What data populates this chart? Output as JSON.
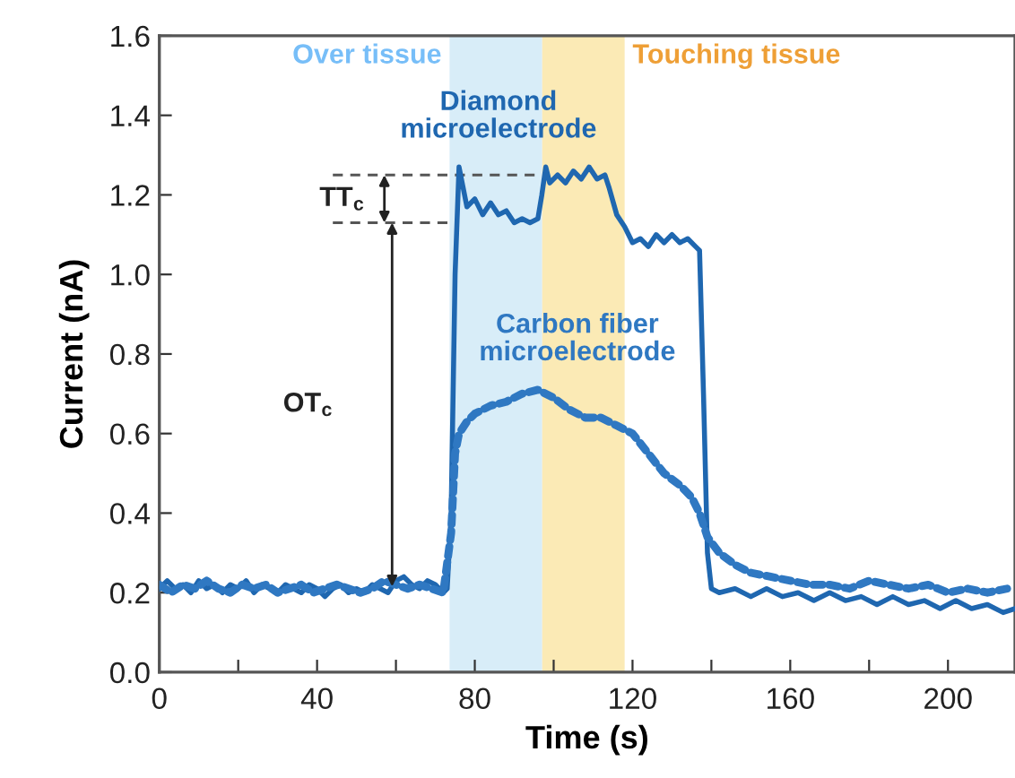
{
  "chart_data": {
    "type": "line",
    "xlabel": "Time (s)",
    "ylabel": "Current (nA)",
    "xlim": [
      0,
      217
    ],
    "ylim": [
      0,
      1.6
    ],
    "xticks": [
      0,
      {
        "value": 20,
        "label": null
      },
      40,
      {
        "value": 60,
        "label": null
      },
      80,
      {
        "value": 100,
        "label": null
      },
      120,
      {
        "value": 140,
        "label": null
      },
      160,
      {
        "value": 180,
        "label": null
      },
      200
    ],
    "yticks": [
      {
        "value": 0,
        "label": "0.0"
      },
      0.2,
      0.4,
      0.6,
      0.8,
      {
        "value": 1.0,
        "label": "1.0"
      },
      1.2,
      1.4,
      1.6
    ],
    "grid": false,
    "legend": false,
    "marker": "none",
    "bands": [
      {
        "axis": "x",
        "from": 73.6,
        "to": 97.1,
        "label": "Over tissue",
        "color": "#d8edf8"
      },
      {
        "axis": "x",
        "from": 97.1,
        "to": 118,
        "label": "Touching tissue",
        "color": "#fbeab5"
      }
    ],
    "ref_lines": [
      {
        "axis": "y",
        "value": 1.25,
        "label": null,
        "color": "#555555",
        "line_style": "dashed"
      },
      {
        "axis": "y",
        "value": 1.13,
        "label": null,
        "color": "#555555",
        "line_style": "dashed"
      }
    ],
    "annotations": [
      "TT$_{c}$",
      "OT$_{c}$"
    ],
    "series": [
      {
        "name": "Diamond\nmicroelectrode",
        "color": "#1f67b0",
        "line_style": "solid",
        "x": [
          0,
          2,
          4,
          6,
          8,
          10,
          12,
          14,
          16,
          18,
          20,
          22,
          24,
          26,
          28,
          30,
          32,
          34,
          36,
          38,
          40,
          42,
          44,
          46,
          48,
          50,
          52,
          54,
          56,
          58,
          60,
          62,
          64,
          66,
          68,
          70,
          72,
          73,
          74,
          75,
          76,
          77,
          78,
          80,
          82,
          84,
          86,
          88,
          90,
          92,
          94,
          96,
          97,
          98,
          99,
          101,
          103,
          105,
          107,
          109,
          111,
          113,
          114,
          116,
          118,
          120,
          122,
          124,
          126,
          128,
          130,
          132,
          134,
          136,
          137,
          138,
          139,
          140,
          142,
          146,
          150,
          154,
          158,
          162,
          166,
          170,
          174,
          178,
          182,
          186,
          190,
          194,
          198,
          202,
          206,
          210,
          214,
          217
        ],
        "values": [
          0.21,
          0.23,
          0.21,
          0.22,
          0.2,
          0.23,
          0.21,
          0.22,
          0.2,
          0.22,
          0.21,
          0.23,
          0.2,
          0.22,
          0.21,
          0.2,
          0.22,
          0.21,
          0.2,
          0.22,
          0.21,
          0.19,
          0.21,
          0.22,
          0.2,
          0.21,
          0.2,
          0.22,
          0.21,
          0.2,
          0.23,
          0.24,
          0.22,
          0.21,
          0.23,
          0.22,
          0.2,
          0.21,
          0.4,
          1.0,
          1.27,
          1.22,
          1.17,
          1.19,
          1.15,
          1.18,
          1.15,
          1.16,
          1.13,
          1.14,
          1.13,
          1.14,
          1.2,
          1.27,
          1.23,
          1.25,
          1.23,
          1.26,
          1.24,
          1.27,
          1.24,
          1.25,
          1.22,
          1.15,
          1.12,
          1.08,
          1.09,
          1.07,
          1.1,
          1.08,
          1.1,
          1.08,
          1.09,
          1.07,
          1.06,
          0.7,
          0.3,
          0.21,
          0.2,
          0.21,
          0.19,
          0.21,
          0.19,
          0.2,
          0.18,
          0.2,
          0.18,
          0.19,
          0.17,
          0.19,
          0.17,
          0.18,
          0.16,
          0.18,
          0.16,
          0.17,
          0.15,
          0.16
        ]
      },
      {
        "name": "Carbon fiber\nmicroelectrode",
        "color": "#2f78c2",
        "line_style": "dotted",
        "x": [
          0,
          3,
          6,
          9,
          12,
          15,
          18,
          21,
          24,
          27,
          30,
          33,
          36,
          39,
          42,
          45,
          48,
          51,
          54,
          57,
          60,
          63,
          66,
          69,
          72,
          74,
          75,
          76,
          78,
          80,
          84,
          88,
          92,
          96,
          100,
          104,
          108,
          112,
          116,
          120,
          124,
          128,
          132,
          135,
          137,
          139,
          142,
          146,
          150,
          155,
          160,
          165,
          170,
          175,
          180,
          185,
          190,
          195,
          200,
          205,
          210,
          215
        ],
        "values": [
          0.22,
          0.2,
          0.22,
          0.21,
          0.23,
          0.21,
          0.2,
          0.22,
          0.21,
          0.22,
          0.2,
          0.21,
          0.22,
          0.2,
          0.21,
          0.22,
          0.21,
          0.2,
          0.21,
          0.23,
          0.22,
          0.21,
          0.22,
          0.21,
          0.2,
          0.35,
          0.55,
          0.6,
          0.63,
          0.65,
          0.67,
          0.68,
          0.7,
          0.71,
          0.69,
          0.66,
          0.64,
          0.64,
          0.62,
          0.6,
          0.55,
          0.5,
          0.47,
          0.44,
          0.4,
          0.34,
          0.3,
          0.27,
          0.25,
          0.24,
          0.23,
          0.22,
          0.22,
          0.21,
          0.23,
          0.22,
          0.21,
          0.22,
          0.2,
          0.21,
          0.2,
          0.21
        ]
      }
    ]
  }
}
